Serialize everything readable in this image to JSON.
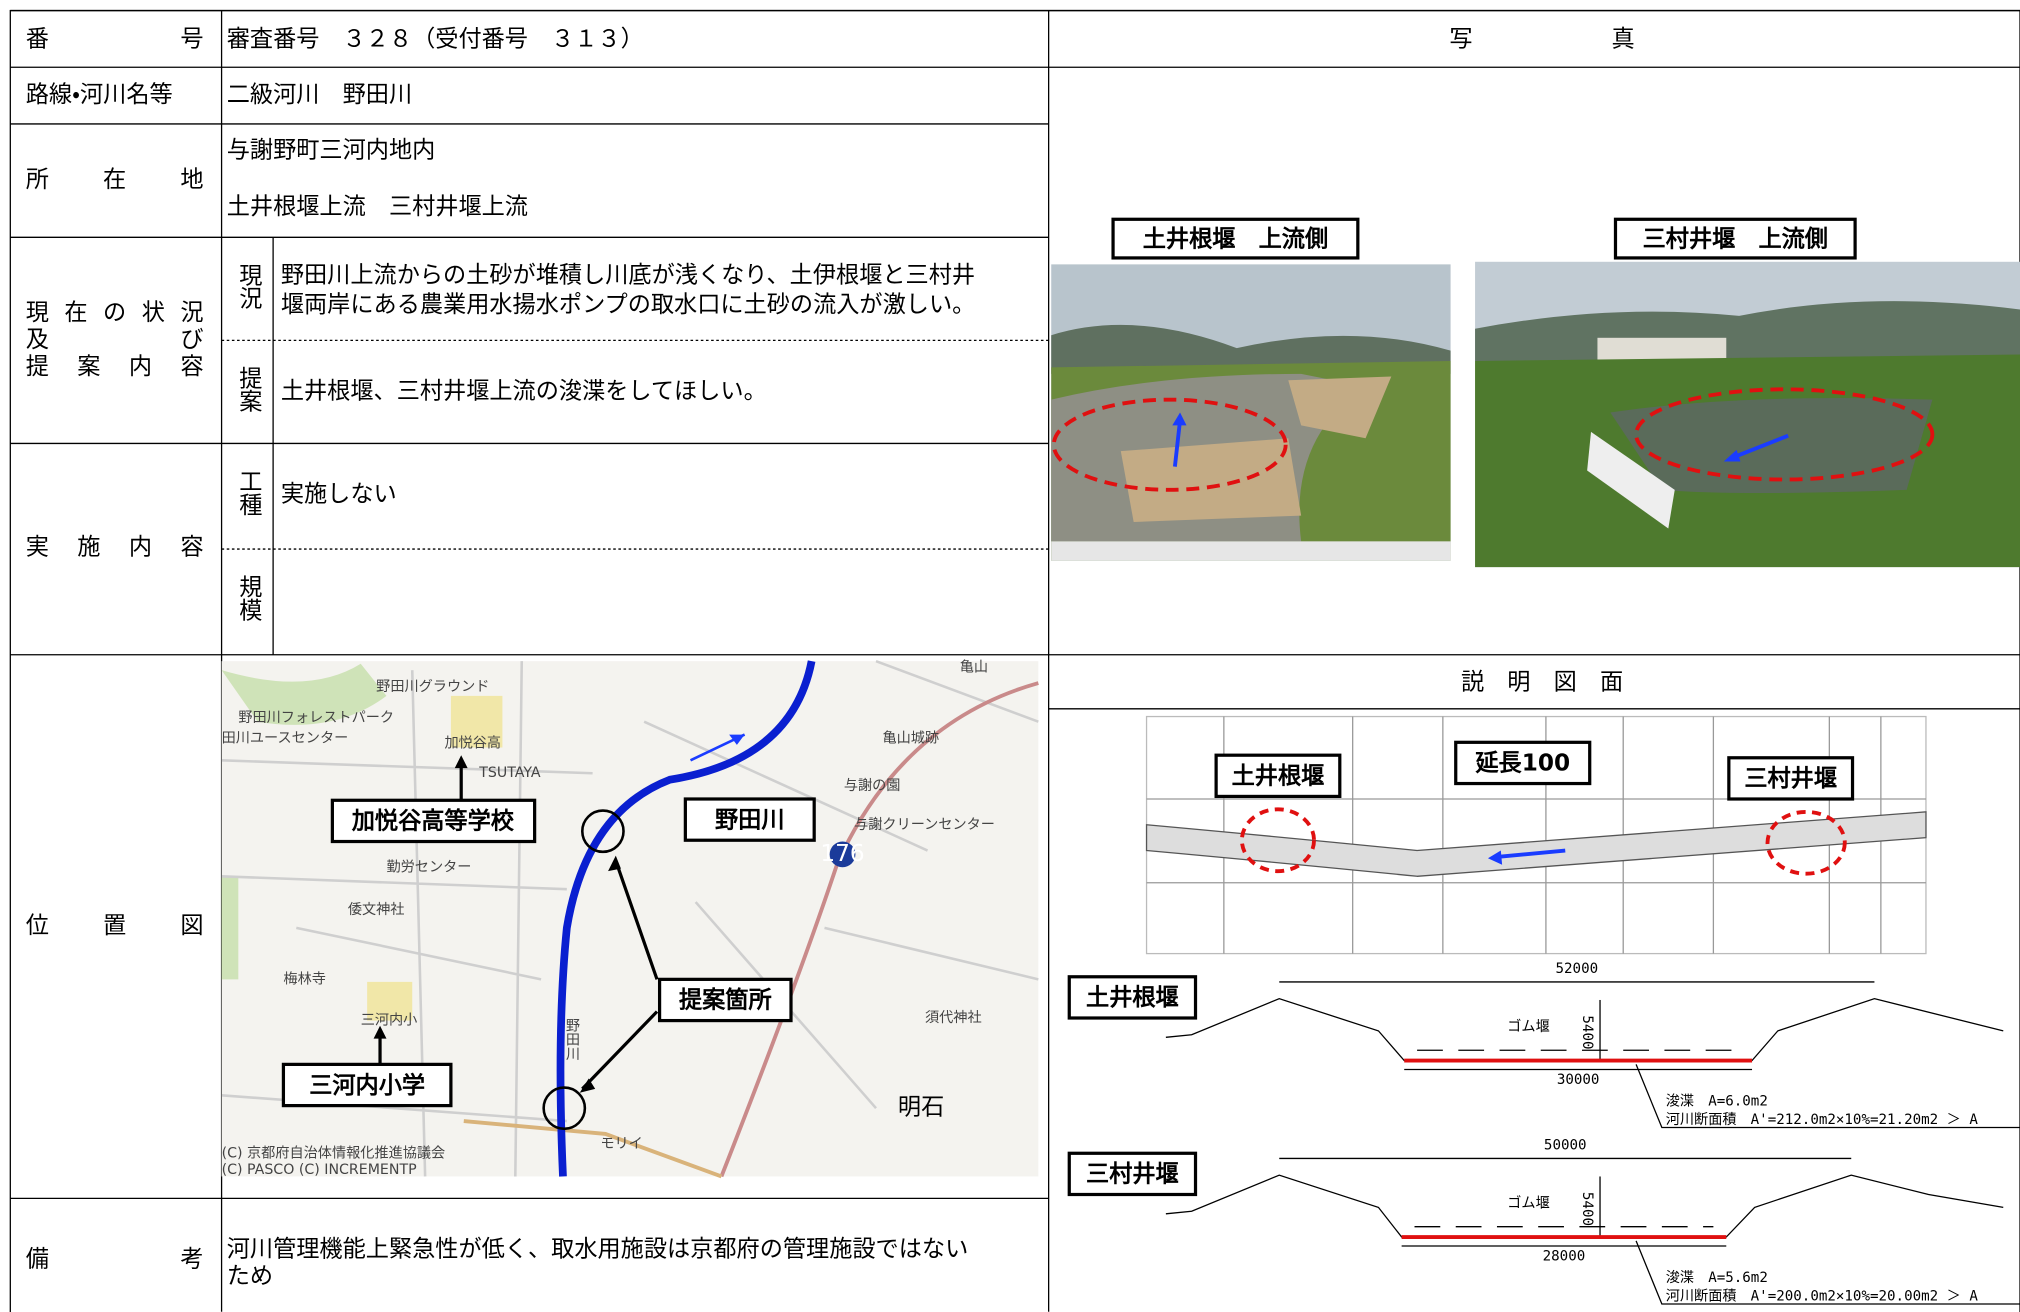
{
  "table": {
    "number": {
      "label": "番　　　　　　号",
      "value": "審査番号　３２８（受付番号　３１３）"
    },
    "route": {
      "label": "路線・河川名等",
      "value": "二級河川　野田川"
    },
    "location": {
      "label": "所　　在　　地",
      "lines": [
        "与謝野町三河内地内",
        "土井根堰上流　三村井堰上流"
      ]
    },
    "status": {
      "label_lines": [
        "現　在　の　状　況",
        "及　　　　　　び",
        "提　案　内　容"
      ],
      "current": {
        "label": "現況",
        "lines": [
          "野田川上流からの土砂が堆積し川底が浅くなり、土伊根堰と三村井",
          "堰両岸にある農業用水揚水ポンプの取水口に土砂の流入が激しい。"
        ]
      },
      "proposal": {
        "label": "提案",
        "text": "土井根堰、三村井堰上流の浚渫をしてほしい。"
      }
    },
    "implementation": {
      "label": "実　施　内　容",
      "work_type": {
        "label": "工種",
        "text": "実施しない"
      },
      "scale": {
        "label": "規模"
      }
    },
    "location_map": {
      "label": "位　　　　置　　　　図",
      "labels": [
        "野田川グラウンド",
        "野田川フォレストパーク",
        "田川ユースセンター",
        "加悦谷高",
        "TSUTAYA",
        "亀山",
        "亀山城跡",
        "与謝の園",
        "与謝クリーンセンター",
        "勤労センター",
        "倭文神社",
        "梅林寺",
        "三河内小",
        "須代神社",
        "明石",
        "モリイ",
        "(C) 京都府自治体情報化推進協議会",
        "(C) PASCO (C) INCREMENTP",
        "野田川",
        "176"
      ],
      "callouts": [
        "加悦谷高等学校",
        "野田川",
        "提案箇所",
        "三河内小学"
      ]
    },
    "remarks": {
      "label": "備　　　　　　考",
      "lines": [
        "河川管理機能上緊急性が低く、取水用施設は京都府の管理施設ではない",
        "ため"
      ]
    }
  },
  "photos": {
    "title": "写　　　　　　真",
    "items": [
      {
        "caption": "土井根堰　上流側"
      },
      {
        "caption": "三村井堰　上流側"
      }
    ]
  },
  "drawing": {
    "title": "説　明　図　面",
    "plan_labels": [
      "土井根堰",
      "延長100",
      "三村井堰"
    ],
    "sections": [
      {
        "name": "土井根堰",
        "top_width": 52000,
        "gate": "ゴム堰",
        "depth": 5400,
        "bottom_width": 30000,
        "dredge": "浚渫　A=6.0m2",
        "area": "河川断面積　A'=212.0m2×10%=21.20m2 ＞ A"
      },
      {
        "name": "三村井堰",
        "top_width": 50000,
        "gate": "ゴム堰",
        "depth": 5400,
        "bottom_width": 28000,
        "dredge": "浚渫　A=5.6m2",
        "area": "河川断面積　A'=200.0m2×10%=20.00m2 ＞ A"
      }
    ]
  }
}
